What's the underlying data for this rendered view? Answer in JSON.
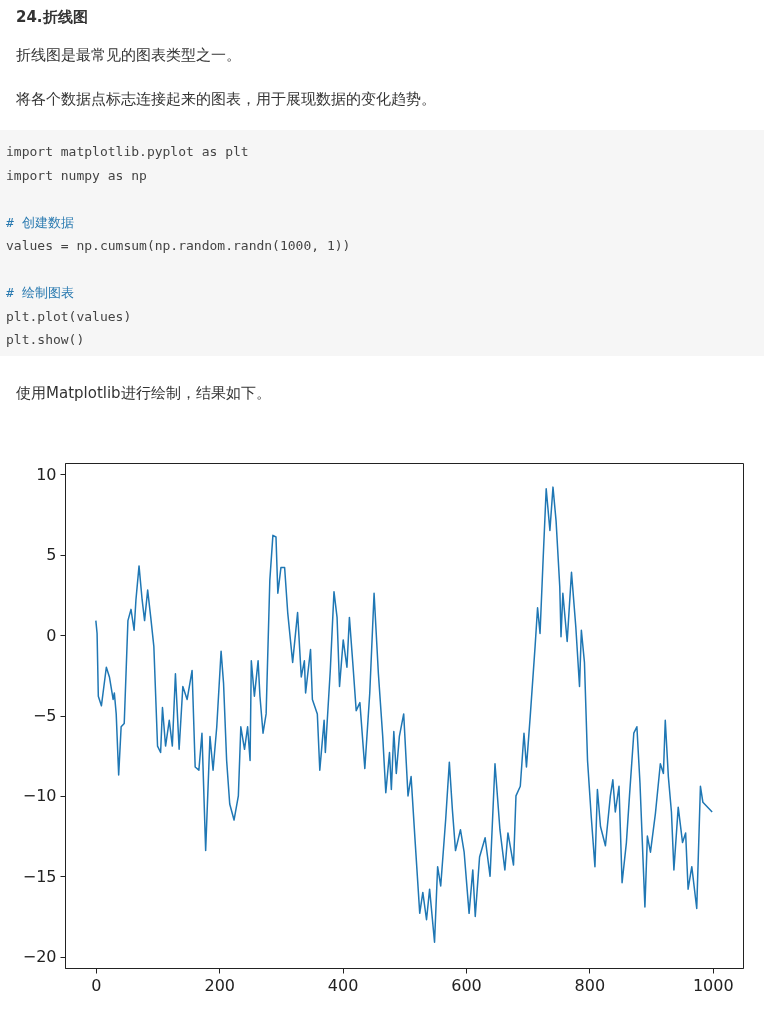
{
  "chart_data": {
    "type": "line",
    "title": "24.折线图",
    "subtitle": "折线图是最常见的图表类型之一。",
    "annotations": [
      "将各个数据点标志连接起来的图表，用于展现数据的变化趋势。",
      "import matplotlib.pyplot as plt\nimport numpy as np\n\n# 创建数据\nvalues = np.cumsum(np.random.randn(1000, 1))\n\n# 绘制图表\nplt.plot(values)\nplt.show()",
      "使用Matplotlib进行绘制，结果如下。"
    ],
    "x": [
      0,
      2,
      4,
      9,
      17,
      22,
      28,
      30,
      33,
      37,
      41,
      46,
      52,
      57,
      62,
      65,
      70,
      75,
      79,
      84,
      89,
      94,
      100,
      105,
      108,
      113,
      119,
      124,
      129,
      135,
      141,
      148,
      156,
      161,
      167,
      172,
      178,
      185,
      190,
      196,
      203,
      207,
      212,
      217,
      224,
      231,
      235,
      241,
      246,
      250,
      252,
      257,
      263,
      266,
      271,
      276,
      282,
      287,
      292,
      295,
      300,
      306,
      311,
      319,
      327,
      333,
      338,
      340,
      348,
      351,
      359,
      363,
      370,
      372,
      380,
      386,
      391,
      395,
      401,
      407,
      411,
      417,
      422,
      428,
      436,
      444,
      451,
      458,
      465,
      470,
      476,
      479,
      483,
      487,
      492,
      499,
      506,
      511,
      517,
      525,
      530,
      536,
      541,
      549,
      554,
      559,
      567,
      573,
      578,
      583,
      591,
      597,
      605,
      611,
      615,
      622,
      631,
      639,
      647,
      655,
      663,
      668,
      677,
      681,
      688,
      694,
      698,
      704,
      712,
      716,
      720,
      725,
      730,
      736,
      741,
      746,
      752,
      754,
      757,
      764,
      771,
      778,
      784,
      787,
      792,
      797,
      803,
      809,
      813,
      818,
      826,
      834,
      838,
      842,
      848,
      853,
      860,
      865,
      872,
      877,
      882,
      890,
      894,
      899,
      907,
      915,
      920,
      923,
      928,
      933,
      937,
      944,
      951,
      956,
      960,
      966,
      974,
      980,
      984,
      999
    ],
    "values": [
      0.9,
      0.1,
      -3.8,
      -4.4,
      -2.0,
      -2.6,
      -4.0,
      -3.6,
      -4.9,
      -8.7,
      -5.7,
      -5.5,
      0.9,
      1.6,
      0.3,
      2.2,
      4.3,
      2.2,
      0.9,
      2.8,
      1.1,
      -0.7,
      -6.9,
      -7.3,
      -4.5,
      -6.9,
      -5.3,
      -6.9,
      -2.4,
      -7.1,
      -3.2,
      -4.0,
      -2.2,
      -8.2,
      -8.4,
      -6.1,
      -13.4,
      -6.3,
      -8.4,
      -5.7,
      -1.0,
      -3.0,
      -7.8,
      -10.5,
      -11.5,
      -10.0,
      -5.7,
      -7.1,
      -5.7,
      -7.8,
      -1.6,
      -3.8,
      -1.6,
      -3.8,
      -6.1,
      -4.9,
      3.4,
      6.2,
      6.1,
      2.6,
      4.2,
      4.2,
      1.4,
      -1.7,
      1.4,
      -2.6,
      -1.6,
      -3.6,
      -0.9,
      -4.0,
      -4.9,
      -8.4,
      -5.3,
      -7.3,
      -2.2,
      2.7,
      1.1,
      -3.2,
      -0.3,
      -2.0,
      1.1,
      -2.0,
      -4.7,
      -4.2,
      -8.3,
      -3.6,
      2.6,
      -2.4,
      -6.3,
      -9.8,
      -7.3,
      -9.6,
      -6.0,
      -8.6,
      -6.3,
      -4.9,
      -10.0,
      -8.8,
      -12.5,
      -17.3,
      -16.0,
      -17.7,
      -15.8,
      -19.1,
      -14.4,
      -15.6,
      -11.5,
      -7.9,
      -10.9,
      -13.4,
      -12.1,
      -13.5,
      -17.3,
      -14.6,
      -17.5,
      -13.8,
      -12.6,
      -15.0,
      -8.0,
      -12.1,
      -14.6,
      -12.3,
      -14.3,
      -10.0,
      -9.4,
      -6.1,
      -8.2,
      -5.1,
      -0.7,
      1.7,
      0.1,
      4.7,
      9.1,
      6.5,
      9.2,
      7.1,
      3.0,
      -0.1,
      2.6,
      -0.4,
      3.9,
      0.5,
      -3.2,
      0.3,
      -1.7,
      -7.8,
      -11.3,
      -14.4,
      -9.6,
      -11.9,
      -13.1,
      -10.0,
      -9.0,
      -11.0,
      -9.4,
      -15.4,
      -12.9,
      -10.0,
      -6.1,
      -5.7,
      -9.2,
      -16.9,
      -12.5,
      -13.5,
      -11.1,
      -8.0,
      -8.6,
      -5.3,
      -8.8,
      -11.0,
      -14.6,
      -10.7,
      -12.9,
      -12.3,
      -15.8,
      -14.4,
      -17.0,
      -9.4,
      -10.4,
      -11.0
    ],
    "color": "#1f77b4",
    "xlim": [
      -50,
      1049
    ],
    "ylim": [
      -20.7,
      10.7
    ],
    "xticks": [
      0,
      200,
      400,
      600,
      800,
      1000
    ],
    "yticks": [
      -20,
      -15,
      -10,
      -5,
      0,
      5,
      10
    ]
  }
}
